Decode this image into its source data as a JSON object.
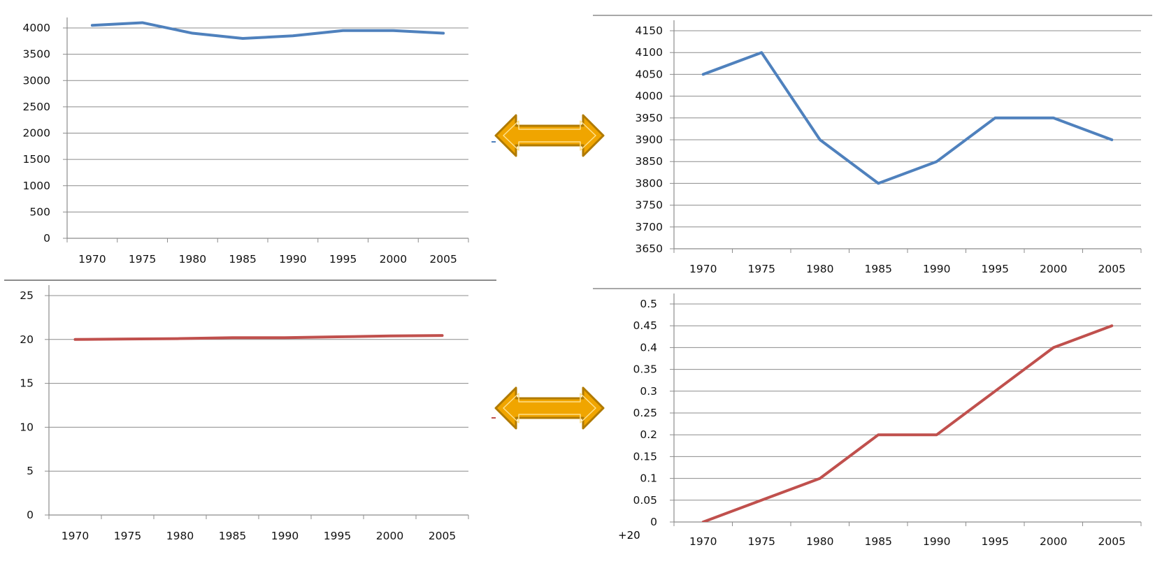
{
  "colors": {
    "blue_series": "#4f81bd",
    "red_series": "#c0504d",
    "grid": "#8c8c8c",
    "axis": "#8c8c8c",
    "arrow_fill": "#f0a500",
    "arrow_stroke": "#b07a00"
  },
  "arrows": [
    {
      "name": "double-arrow-icon-top"
    },
    {
      "name": "double-arrow-icon-bottom"
    }
  ],
  "chart_data": [
    {
      "type": "line",
      "title": "",
      "xlabel": "",
      "ylabel": "",
      "categories": [
        "1970",
        "1975",
        "1980",
        "1985",
        "1990",
        "1995",
        "2000",
        "2005"
      ],
      "series": [
        {
          "values": [
            4050,
            4100,
            3900,
            3800,
            3850,
            3950,
            3950,
            3900
          ],
          "color": "#4f81bd"
        }
      ],
      "ylim": [
        0,
        4000
      ],
      "yticks": [
        "0",
        "500",
        "1000",
        "1500",
        "2000",
        "2500",
        "3000",
        "3500",
        "4000"
      ],
      "grid": true,
      "legend": "none"
    },
    {
      "type": "line",
      "title": "",
      "xlabel": "",
      "ylabel": "",
      "categories": [
        "1970",
        "1975",
        "1980",
        "1985",
        "1990",
        "1995",
        "2000",
        "2005"
      ],
      "series": [
        {
          "values": [
            4050,
            4100,
            3900,
            3800,
            3850,
            3950,
            3950,
            3900
          ],
          "color": "#4f81bd"
        }
      ],
      "ylim": [
        3650,
        4150
      ],
      "yticks": [
        "3650",
        "3700",
        "3750",
        "3800",
        "3850",
        "3900",
        "3950",
        "4000",
        "4050",
        "4100",
        "4150"
      ],
      "grid": true,
      "legend": "none"
    },
    {
      "type": "line",
      "title": "",
      "xlabel": "",
      "ylabel": "",
      "categories": [
        "1970",
        "1975",
        "1980",
        "1985",
        "1990",
        "1995",
        "2000",
        "2005"
      ],
      "series": [
        {
          "values": [
            20,
            20.05,
            20.1,
            20.2,
            20.2,
            20.3,
            20.4,
            20.45
          ],
          "color": "#c0504d"
        }
      ],
      "ylim": [
        0,
        25
      ],
      "yticks": [
        "0",
        "5",
        "10",
        "15",
        "20",
        "25"
      ],
      "grid": true,
      "legend": "none"
    },
    {
      "type": "line",
      "title": "",
      "xlabel": "",
      "ylabel": "",
      "categories": [
        "1970",
        "1975",
        "1980",
        "1985",
        "1990",
        "1995",
        "2000",
        "2005"
      ],
      "series": [
        {
          "values": [
            0,
            0.05,
            0.1,
            0.2,
            0.2,
            0.3,
            0.4,
            0.45
          ],
          "color": "#c0504d"
        }
      ],
      "ylim": [
        0,
        0.5
      ],
      "yticks": [
        "0",
        "0.05",
        "0.1",
        "0.15",
        "0.2",
        "0.25",
        "0.3",
        "0.35",
        "0.4",
        "0.45",
        "0.5"
      ],
      "grid": true,
      "legend": "none",
      "annotation": "+20"
    }
  ]
}
